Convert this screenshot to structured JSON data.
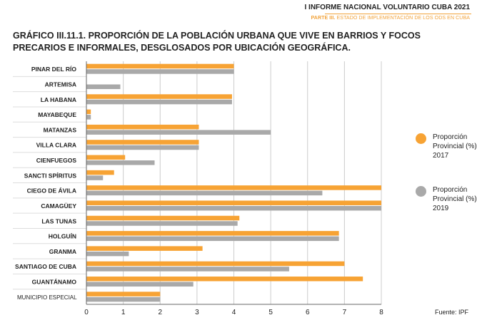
{
  "header": {
    "report_title": "I INFORME NACIONAL VOLUNTARIO CUBA 2021",
    "section_bold": "PARTE III.",
    "section_rest": " ESTADO DE IMPLEMENTACIÓN DE LOS ODS EN CUBA"
  },
  "source": "Fuente: IPF",
  "colors": {
    "series_2017": "#f7a334",
    "series_2019": "#a9a9a9",
    "grid": "#cccccc",
    "axis": "#666666"
  },
  "chart_data": {
    "type": "bar",
    "orientation": "horizontal",
    "title": "GRÁFICO III.11.1. PROPORCIÓN DE LA POBLACIÓN URBANA QUE VIVE EN BARRIOS Y FOCOS PRECARIOS E INFORMALES, DESGLOSADOS POR UBICACIÓN GEOGRÁFICA.",
    "categories": [
      "PINAR DEL RÍO",
      "ARTEMISA",
      "LA HABANA",
      "MAYABEQUE",
      "MATANZAS",
      "VILLA CLARA",
      "CIENFUEGOS",
      "SANCTI SPÍRITUS",
      "CIEGO DE ÁVILA",
      "CAMAGÜEY",
      "LAS TUNAS",
      "HOLGUÍN",
      "GRANMA",
      "SANTIAGO DE CUBA",
      "GUANTÁNAMO",
      "MUNICIPIO ESPECIAL"
    ],
    "series": [
      {
        "name": "Proporción Provincial (%) 2017",
        "values": [
          4.0,
          0.0,
          3.95,
          0.12,
          3.05,
          3.05,
          1.05,
          0.75,
          8.0,
          8.0,
          4.15,
          6.85,
          3.15,
          7.0,
          7.5,
          2.0
        ]
      },
      {
        "name": "Proporción Provincial (%) 2019",
        "values": [
          4.0,
          0.92,
          3.95,
          0.12,
          5.0,
          3.05,
          1.85,
          0.45,
          6.4,
          8.0,
          4.1,
          6.85,
          1.15,
          5.5,
          2.9,
          2.0
        ]
      }
    ],
    "xticks": [
      "0",
      "1",
      "2",
      "3",
      "4",
      "5",
      "6",
      "7",
      "8"
    ],
    "xlim": [
      0,
      8
    ],
    "grid": true,
    "legend_position": "right"
  }
}
